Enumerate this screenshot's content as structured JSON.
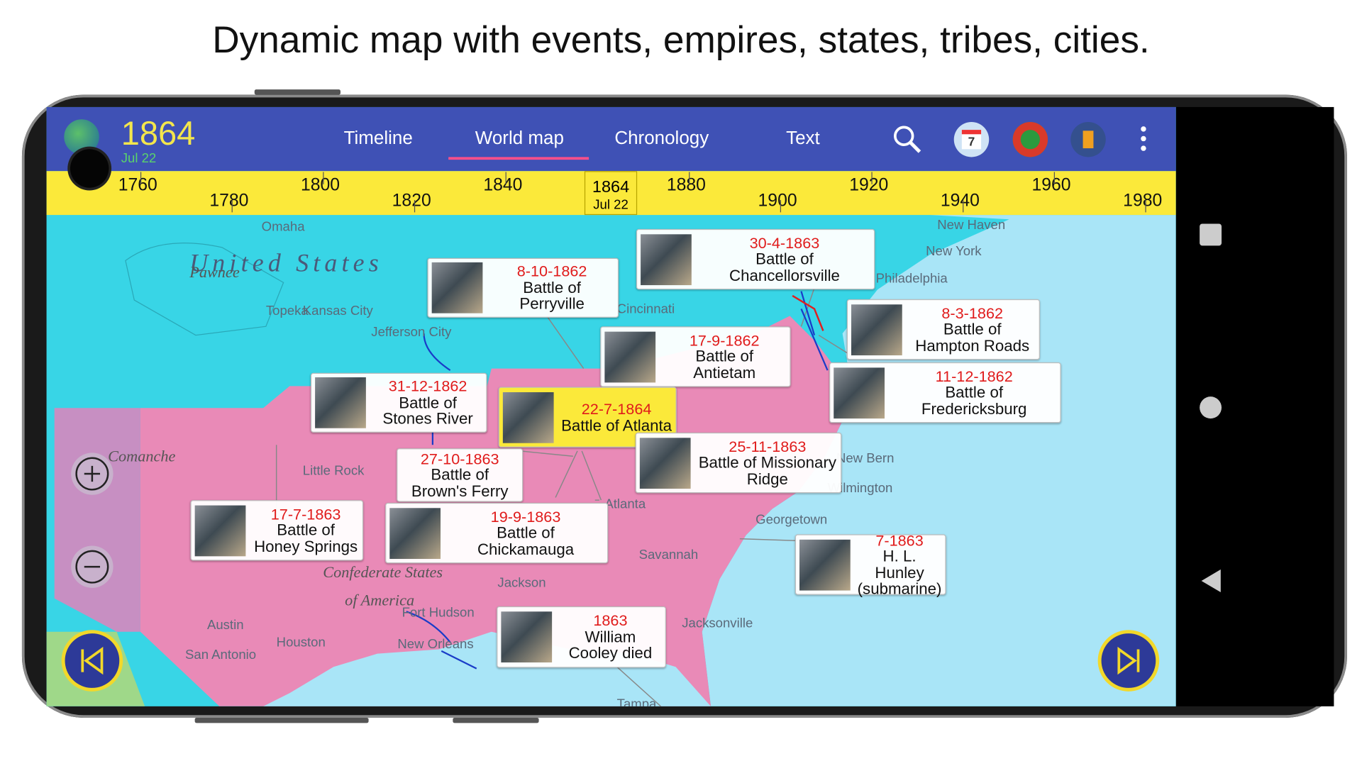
{
  "header": {
    "caption": "Dynamic map with events, empires, states, tribes, cities."
  },
  "app": {
    "year": "1864",
    "date": "Jul 22",
    "tabs": [
      "Timeline",
      "World map",
      "Chronology",
      "Text"
    ],
    "calendar_day": "7"
  },
  "timeline": {
    "labels": [
      "1760",
      "1780",
      "1800",
      "1820",
      "1840",
      "1880",
      "1900",
      "1920",
      "1940",
      "1960",
      "1980"
    ],
    "marker": {
      "year": "1864",
      "date": "Jul 22"
    }
  },
  "map": {
    "labels": [
      "United States",
      "Pawnee",
      "Omaha",
      "Topeka",
      "Kansas City",
      "Jefferson City",
      "Cincinnati",
      "New Haven",
      "New York",
      "Philadelphia",
      "Comanche",
      "Little Rock",
      "Atlanta",
      "Savannah",
      "Georgetown",
      "New Bern",
      "Wilmington",
      "Jackson",
      "Confederate States",
      "of America",
      "Fort Hudson",
      "Austin",
      "Houston",
      "San Antonio",
      "New Orleans",
      "Jacksonville",
      "Tampa"
    ]
  },
  "events": [
    {
      "date": "8-10-1862",
      "title": "Battle of Perryville"
    },
    {
      "date": "30-4-1863",
      "title": "Battle of Chancellorsville"
    },
    {
      "date": "8-3-1862",
      "title": "Battle of Hampton Roads"
    },
    {
      "date": "17-9-1862",
      "title": "Battle of Antietam"
    },
    {
      "date": "11-12-1862",
      "title": "Battle of Fredericksburg"
    },
    {
      "date": "31-12-1862",
      "title": "Battle of Stones River"
    },
    {
      "date": "22-7-1864",
      "title": "Battle of Atlanta"
    },
    {
      "date": "27-10-1863",
      "title": "Battle of Brown's Ferry"
    },
    {
      "date": "25-11-1863",
      "title": "Battle of Missionary Ridge"
    },
    {
      "date": "17-7-1863",
      "title": "Battle of Honey Springs"
    },
    {
      "date": "19-9-1863",
      "title": "Battle of Chickamauga"
    },
    {
      "date": "7-1863",
      "title": "H. L. Hunley (submarine)"
    },
    {
      "date": "1863",
      "title": "William Cooley died"
    }
  ]
}
